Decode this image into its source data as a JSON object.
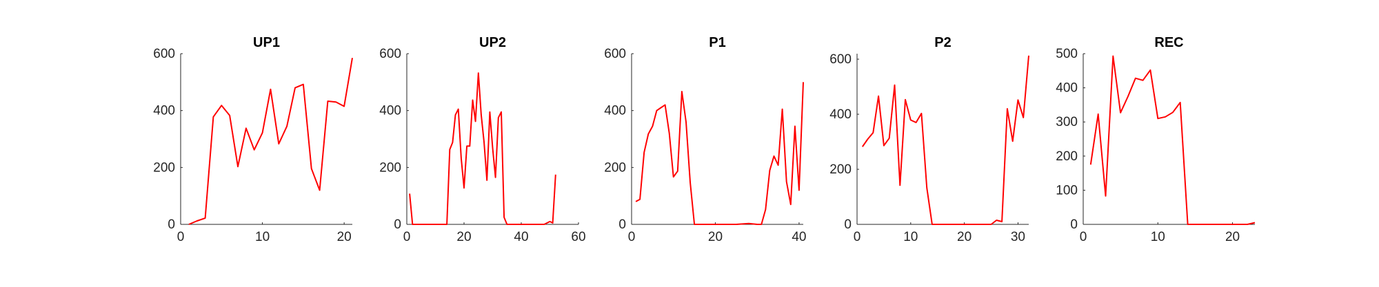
{
  "chart_data": [
    {
      "type": "line",
      "title": "UP1",
      "color": "#ff0000",
      "xlim": [
        0,
        21
      ],
      "ylim": [
        0,
        600
      ],
      "xticks": [
        0,
        10,
        20
      ],
      "yticks": [
        0,
        200,
        400,
        600
      ],
      "x": [
        1,
        2,
        3,
        4,
        5,
        6,
        7,
        8,
        9,
        10,
        11,
        12,
        13,
        14,
        15,
        16,
        17,
        18,
        19,
        20,
        21
      ],
      "y": [
        0,
        12,
        22,
        378,
        418,
        383,
        203,
        338,
        262,
        322,
        475,
        283,
        345,
        480,
        492,
        196,
        120,
        433,
        430,
        415,
        585
      ]
    },
    {
      "type": "line",
      "title": "UP2",
      "color": "#ff0000",
      "xlim": [
        0,
        60
      ],
      "ylim": [
        0,
        600
      ],
      "xticks": [
        0,
        20,
        40,
        60
      ],
      "yticks": [
        0,
        200,
        400,
        600
      ],
      "x": [
        1,
        2,
        3,
        5,
        10,
        14,
        15,
        16,
        17,
        18,
        19,
        20,
        21,
        22,
        23,
        24,
        25,
        26,
        27,
        28,
        29,
        30,
        31,
        32,
        33,
        34,
        35,
        36,
        38,
        45,
        48,
        50,
        51,
        52
      ],
      "y": [
        108,
        0,
        0,
        0,
        0,
        0,
        263,
        288,
        385,
        405,
        232,
        128,
        275,
        275,
        437,
        362,
        532,
        385,
        290,
        155,
        395,
        268,
        165,
        375,
        395,
        25,
        0,
        0,
        0,
        0,
        0,
        10,
        5,
        175
      ]
    },
    {
      "type": "line",
      "title": "P1",
      "color": "#ff0000",
      "xlim": [
        0,
        41
      ],
      "ylim": [
        0,
        600
      ],
      "xticks": [
        0,
        20,
        40
      ],
      "yticks": [
        0,
        200,
        400,
        600
      ],
      "x": [
        1,
        2,
        3,
        4,
        5,
        6,
        7,
        8,
        9,
        10,
        11,
        12,
        13,
        14,
        15,
        16,
        20,
        25,
        28,
        30,
        31,
        32,
        33,
        34,
        35,
        36,
        37,
        38,
        39,
        40,
        41
      ],
      "y": [
        80,
        88,
        253,
        318,
        345,
        400,
        410,
        420,
        320,
        167,
        187,
        467,
        360,
        148,
        0,
        0,
        0,
        0,
        3,
        0,
        0,
        52,
        190,
        240,
        208,
        405,
        150,
        70,
        345,
        120,
        500
      ]
    },
    {
      "type": "line",
      "title": "P2",
      "color": "#ff0000",
      "xlim": [
        0,
        32
      ],
      "ylim": [
        0,
        620
      ],
      "xticks": [
        0,
        10,
        20,
        30
      ],
      "yticks": [
        0,
        200,
        400,
        600
      ],
      "x": [
        1,
        2,
        3,
        4,
        5,
        6,
        7,
        8,
        9,
        10,
        11,
        12,
        13,
        14,
        20,
        25,
        26,
        27,
        28,
        29,
        30,
        31,
        32
      ],
      "y": [
        282,
        310,
        333,
        466,
        286,
        313,
        506,
        142,
        453,
        379,
        370,
        403,
        133,
        0,
        0,
        0,
        15,
        10,
        420,
        302,
        452,
        388,
        613
      ]
    },
    {
      "type": "line",
      "title": "REC",
      "color": "#ff0000",
      "xlim": [
        0,
        23
      ],
      "ylim": [
        0,
        500
      ],
      "xticks": [
        0,
        10,
        20
      ],
      "yticks": [
        0,
        100,
        200,
        300,
        400,
        500
      ],
      "x": [
        1,
        2,
        3,
        4,
        5,
        6,
        7,
        8,
        9,
        10,
        11,
        12,
        13,
        14,
        18,
        22,
        23
      ],
      "y": [
        175,
        323,
        83,
        493,
        327,
        375,
        428,
        422,
        452,
        310,
        315,
        328,
        357,
        0,
        0,
        0,
        5
      ]
    }
  ]
}
